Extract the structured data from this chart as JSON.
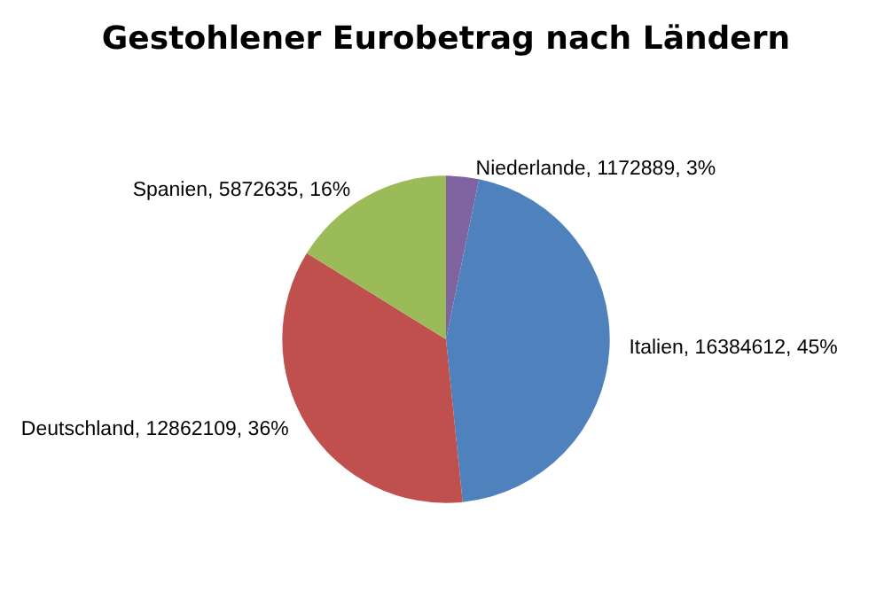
{
  "chart_data": {
    "type": "pie",
    "title": "Gestohlener Eurobetrag nach Ländern",
    "categories": [
      "Niederlande",
      "Italien",
      "Deutschland",
      "Spanien"
    ],
    "values": [
      1172889,
      16384612,
      12862109,
      5872635
    ],
    "value_labels": [
      "1172889, 3%",
      "16384612, 45%",
      "12862109, 36%",
      "5872635, 16%"
    ],
    "colors": [
      "#8064a2",
      "#4f81bd",
      "#c0504d",
      "#9bbb59"
    ],
    "legend": false
  }
}
